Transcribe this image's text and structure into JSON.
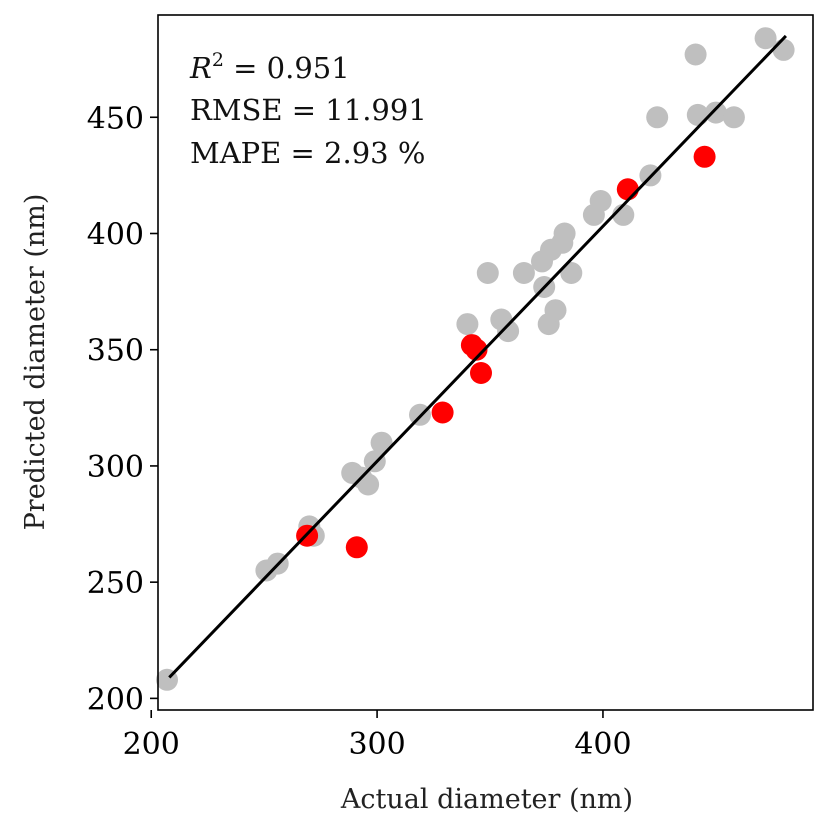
{
  "chart_data": {
    "type": "scatter",
    "title": "",
    "xlabel": "Actual diameter (nm)",
    "ylabel": "Predicted diameter (nm)",
    "xlim": [
      203,
      493
    ],
    "ylim": [
      195,
      494
    ],
    "xticks": [
      200,
      300,
      400
    ],
    "yticks": [
      200,
      250,
      300,
      350,
      400,
      450
    ],
    "grid": false,
    "legend": "none",
    "annotations": {
      "r2_symbol": "R",
      "r2_exp": "2",
      "r2_value": " = 0.951",
      "rmse": "RMSE = 11.991",
      "mape": "MAPE = 2.93 %"
    },
    "fit_line": {
      "x": [
        208,
        481
      ],
      "y": [
        209,
        485
      ],
      "color": "#000000"
    },
    "series": [
      {
        "color": "#bfbfbf",
        "points": [
          [
            207,
            208
          ],
          [
            251,
            255
          ],
          [
            256,
            258
          ],
          [
            270,
            274
          ],
          [
            272,
            270
          ],
          [
            289,
            297
          ],
          [
            293,
            295
          ],
          [
            296,
            292
          ],
          [
            299,
            302
          ],
          [
            302,
            310
          ],
          [
            319,
            322
          ],
          [
            340,
            361
          ],
          [
            349,
            383
          ],
          [
            355,
            363
          ],
          [
            358,
            358
          ],
          [
            365,
            383
          ],
          [
            373,
            388
          ],
          [
            374,
            377
          ],
          [
            376,
            361
          ],
          [
            377,
            393
          ],
          [
            379,
            367
          ],
          [
            382,
            396
          ],
          [
            383,
            400
          ],
          [
            386,
            383
          ],
          [
            396,
            408
          ],
          [
            399,
            414
          ],
          [
            409,
            408
          ],
          [
            421,
            425
          ],
          [
            424,
            450
          ],
          [
            441,
            477
          ],
          [
            442,
            451
          ],
          [
            450,
            452
          ],
          [
            458,
            450
          ],
          [
            472,
            484
          ],
          [
            480,
            479
          ]
        ]
      },
      {
        "color": "#ff0000",
        "points": [
          [
            269,
            270
          ],
          [
            291,
            265
          ],
          [
            329,
            323
          ],
          [
            342,
            352
          ],
          [
            344,
            350
          ],
          [
            346,
            340
          ],
          [
            411,
            419
          ],
          [
            445,
            433
          ]
        ]
      }
    ]
  }
}
